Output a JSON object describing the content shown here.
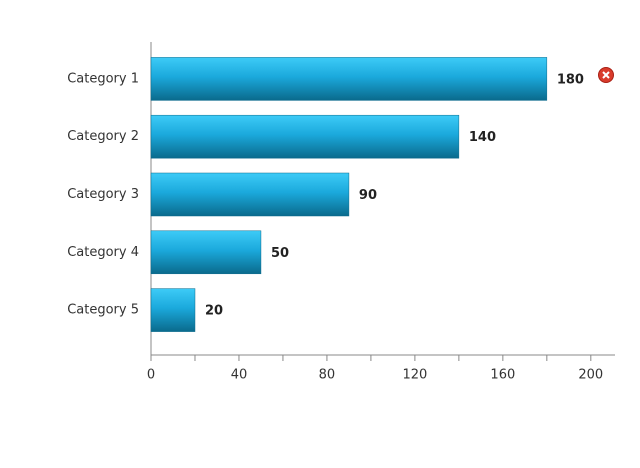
{
  "chart_data": {
    "type": "bar",
    "orientation": "horizontal",
    "categories": [
      "Category 1",
      "Category 2",
      "Category 3",
      "Category 4",
      "Category 5"
    ],
    "values": [
      180,
      140,
      90,
      50,
      20
    ],
    "color": "#1aa6d6",
    "xlim": [
      0,
      211
    ],
    "xticks": [
      0,
      40,
      80,
      120,
      160,
      200
    ],
    "xminorticks": [
      20,
      60,
      100,
      140,
      180
    ],
    "grid": false
  }
}
